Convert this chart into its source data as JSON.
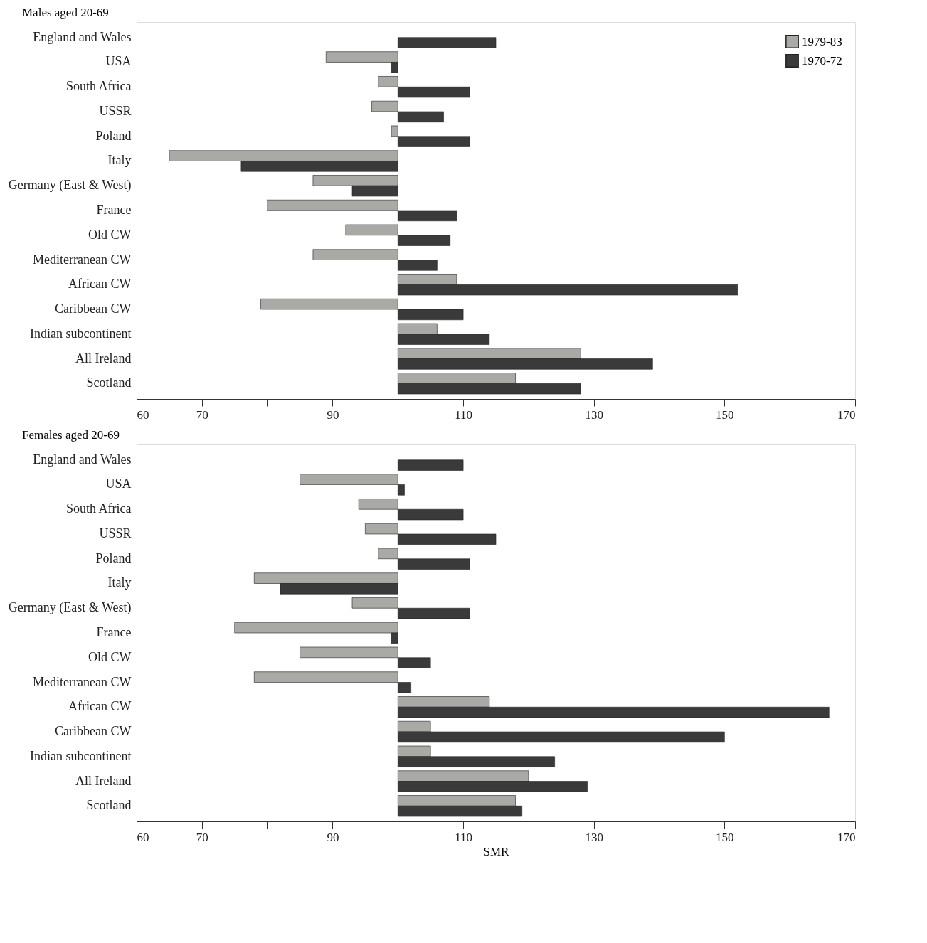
{
  "chart_data": [
    {
      "type": "bar",
      "orientation": "horizontal",
      "title": "Males aged 20-69",
      "legend": "top right",
      "categories": [
        "England and Wales",
        "USA",
        "South Africa",
        "USSR",
        "Poland",
        "Italy",
        "Germany (East & West)",
        "France",
        "Old CW",
        "Mediterranean CW",
        "African CW",
        "Caribbean CW",
        "Indian subcontinent",
        "All Ireland",
        "Scotland"
      ],
      "series": [
        {
          "name": "1979-83",
          "color": "#a9a9a6",
          "base": [
            null,
            100,
            100,
            100,
            100,
            100,
            100,
            100,
            100,
            100,
            100,
            100,
            100,
            100,
            100
          ],
          "values": [
            null,
            -11,
            -3,
            -4,
            -1,
            -35,
            -13,
            -20,
            -8,
            -13,
            9,
            -21,
            6,
            28,
            18
          ]
        },
        {
          "name": "1970-72",
          "color": "#3b3a3a",
          "base": [
            100,
            100,
            100,
            100,
            100,
            100,
            100,
            100,
            100,
            100,
            100,
            100,
            100,
            100,
            100
          ],
          "values": [
            15,
            -1,
            11,
            7,
            11,
            -24,
            -7,
            9,
            8,
            6,
            52,
            10,
            14,
            39,
            28
          ]
        }
      ],
      "xlim": [
        60,
        170
      ],
      "xticks": [
        60,
        70,
        {
          "value": 80,
          "label": null
        },
        90,
        {
          "value": 100,
          "label": null
        },
        110,
        {
          "value": 120,
          "label": null
        },
        130,
        {
          "value": 140,
          "label": null
        },
        150,
        {
          "value": 160,
          "label": null
        },
        170
      ],
      "grid": false
    },
    {
      "type": "bar",
      "orientation": "horizontal",
      "title": "Females aged 20-69",
      "xlabel": "SMR",
      "legend": false,
      "categories": [
        "England and Wales",
        "USA",
        "South Africa",
        "USSR",
        "Poland",
        "Italy",
        "Germany (East & West)",
        "France",
        "Old CW",
        "Mediterranean CW",
        "African CW",
        "Caribbean CW",
        "Indian subcontinent",
        "All Ireland",
        "Scotland"
      ],
      "series": [
        {
          "color": "#a9a9a6",
          "base": [
            null,
            100,
            100,
            100,
            100,
            100,
            100,
            100,
            100,
            100,
            100,
            100,
            100,
            100,
            100
          ],
          "values": [
            null,
            -15,
            -6,
            -5,
            -3,
            -22,
            -7,
            -25,
            -15,
            -22,
            14,
            5,
            5,
            20,
            18
          ]
        },
        {
          "color": "#3b3a3a",
          "base": [
            100,
            100,
            100,
            100,
            100,
            100,
            100,
            100,
            100,
            100,
            100,
            100,
            100,
            100,
            100
          ],
          "values": [
            10,
            1,
            10,
            15,
            11,
            -18,
            11,
            -1,
            5,
            2,
            66,
            50,
            24,
            29,
            19
          ]
        }
      ],
      "xlim": [
        60,
        170
      ],
      "xticks": [
        60,
        70,
        {
          "value": 80,
          "label": null
        },
        90,
        {
          "value": 100,
          "label": null
        },
        110,
        {
          "value": 120,
          "label": null
        },
        130,
        {
          "value": 140,
          "label": null
        },
        150,
        {
          "value": 160,
          "label": null
        },
        170
      ],
      "grid": false
    }
  ]
}
